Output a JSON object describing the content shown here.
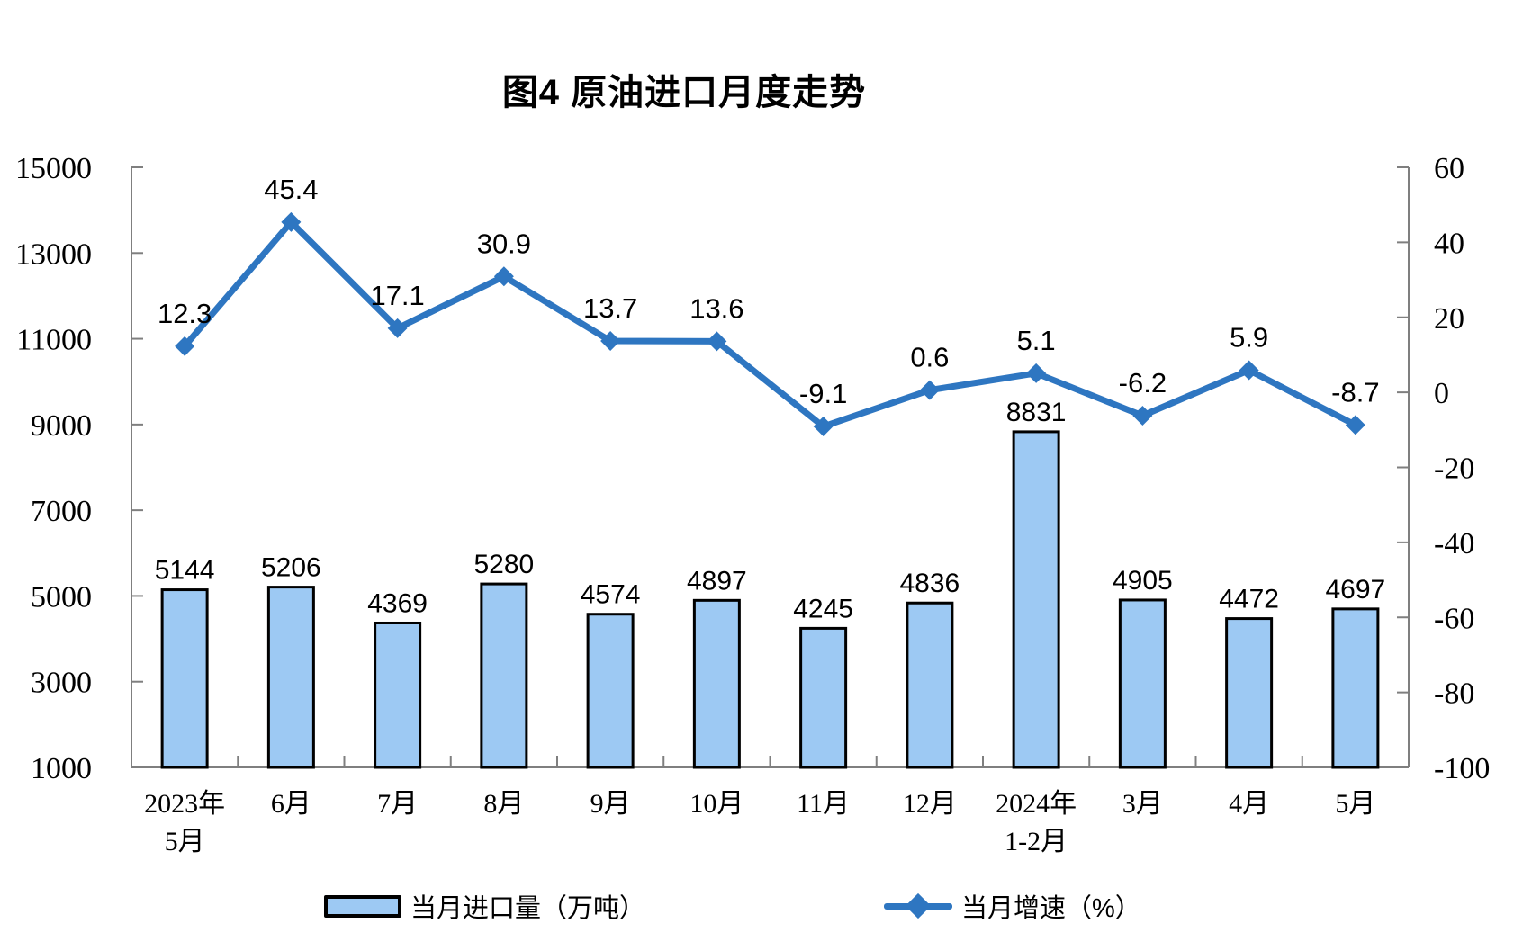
{
  "title": "图4 原油进口月度走势",
  "legend": {
    "bar_label": "当月进口量（万吨）",
    "line_label": "当月增速（%）"
  },
  "colors": {
    "bar_fill": "#9DC9F3",
    "bar_border": "#000000",
    "line": "#2E76C1",
    "text": "#000000",
    "axis": "#7F7F7F",
    "background": "#FFFFFF"
  },
  "chart_data": {
    "type": "bar+line",
    "title": "图4 原油进口月度走势",
    "categories": [
      "2023年\n5月",
      "6月",
      "7月",
      "8月",
      "9月",
      "10月",
      "11月",
      "12月",
      "2024年\n1-2月",
      "3月",
      "4月",
      "5月"
    ],
    "series": [
      {
        "name": "当月进口量（万吨）",
        "type": "bar",
        "axis": "left",
        "values": [
          5144,
          5206,
          4369,
          5280,
          4574,
          4897,
          4245,
          4836,
          8831,
          4905,
          4472,
          4697
        ]
      },
      {
        "name": "当月增速（%）",
        "type": "line",
        "axis": "right",
        "values": [
          12.3,
          45.4,
          17.1,
          30.9,
          13.7,
          13.6,
          -9.1,
          0.6,
          5.1,
          -6.2,
          5.9,
          -8.7
        ]
      }
    ],
    "left_axis": {
      "min": 1000,
      "max": 15000,
      "ticks": [
        1000,
        3000,
        5000,
        7000,
        9000,
        11000,
        13000,
        15000
      ]
    },
    "right_axis": {
      "min": -100,
      "max": 60,
      "ticks": [
        -100,
        -80,
        -60,
        -40,
        -20,
        0,
        20,
        40,
        60
      ]
    },
    "grid": false,
    "data_labels": true,
    "legend_position": "bottom"
  }
}
